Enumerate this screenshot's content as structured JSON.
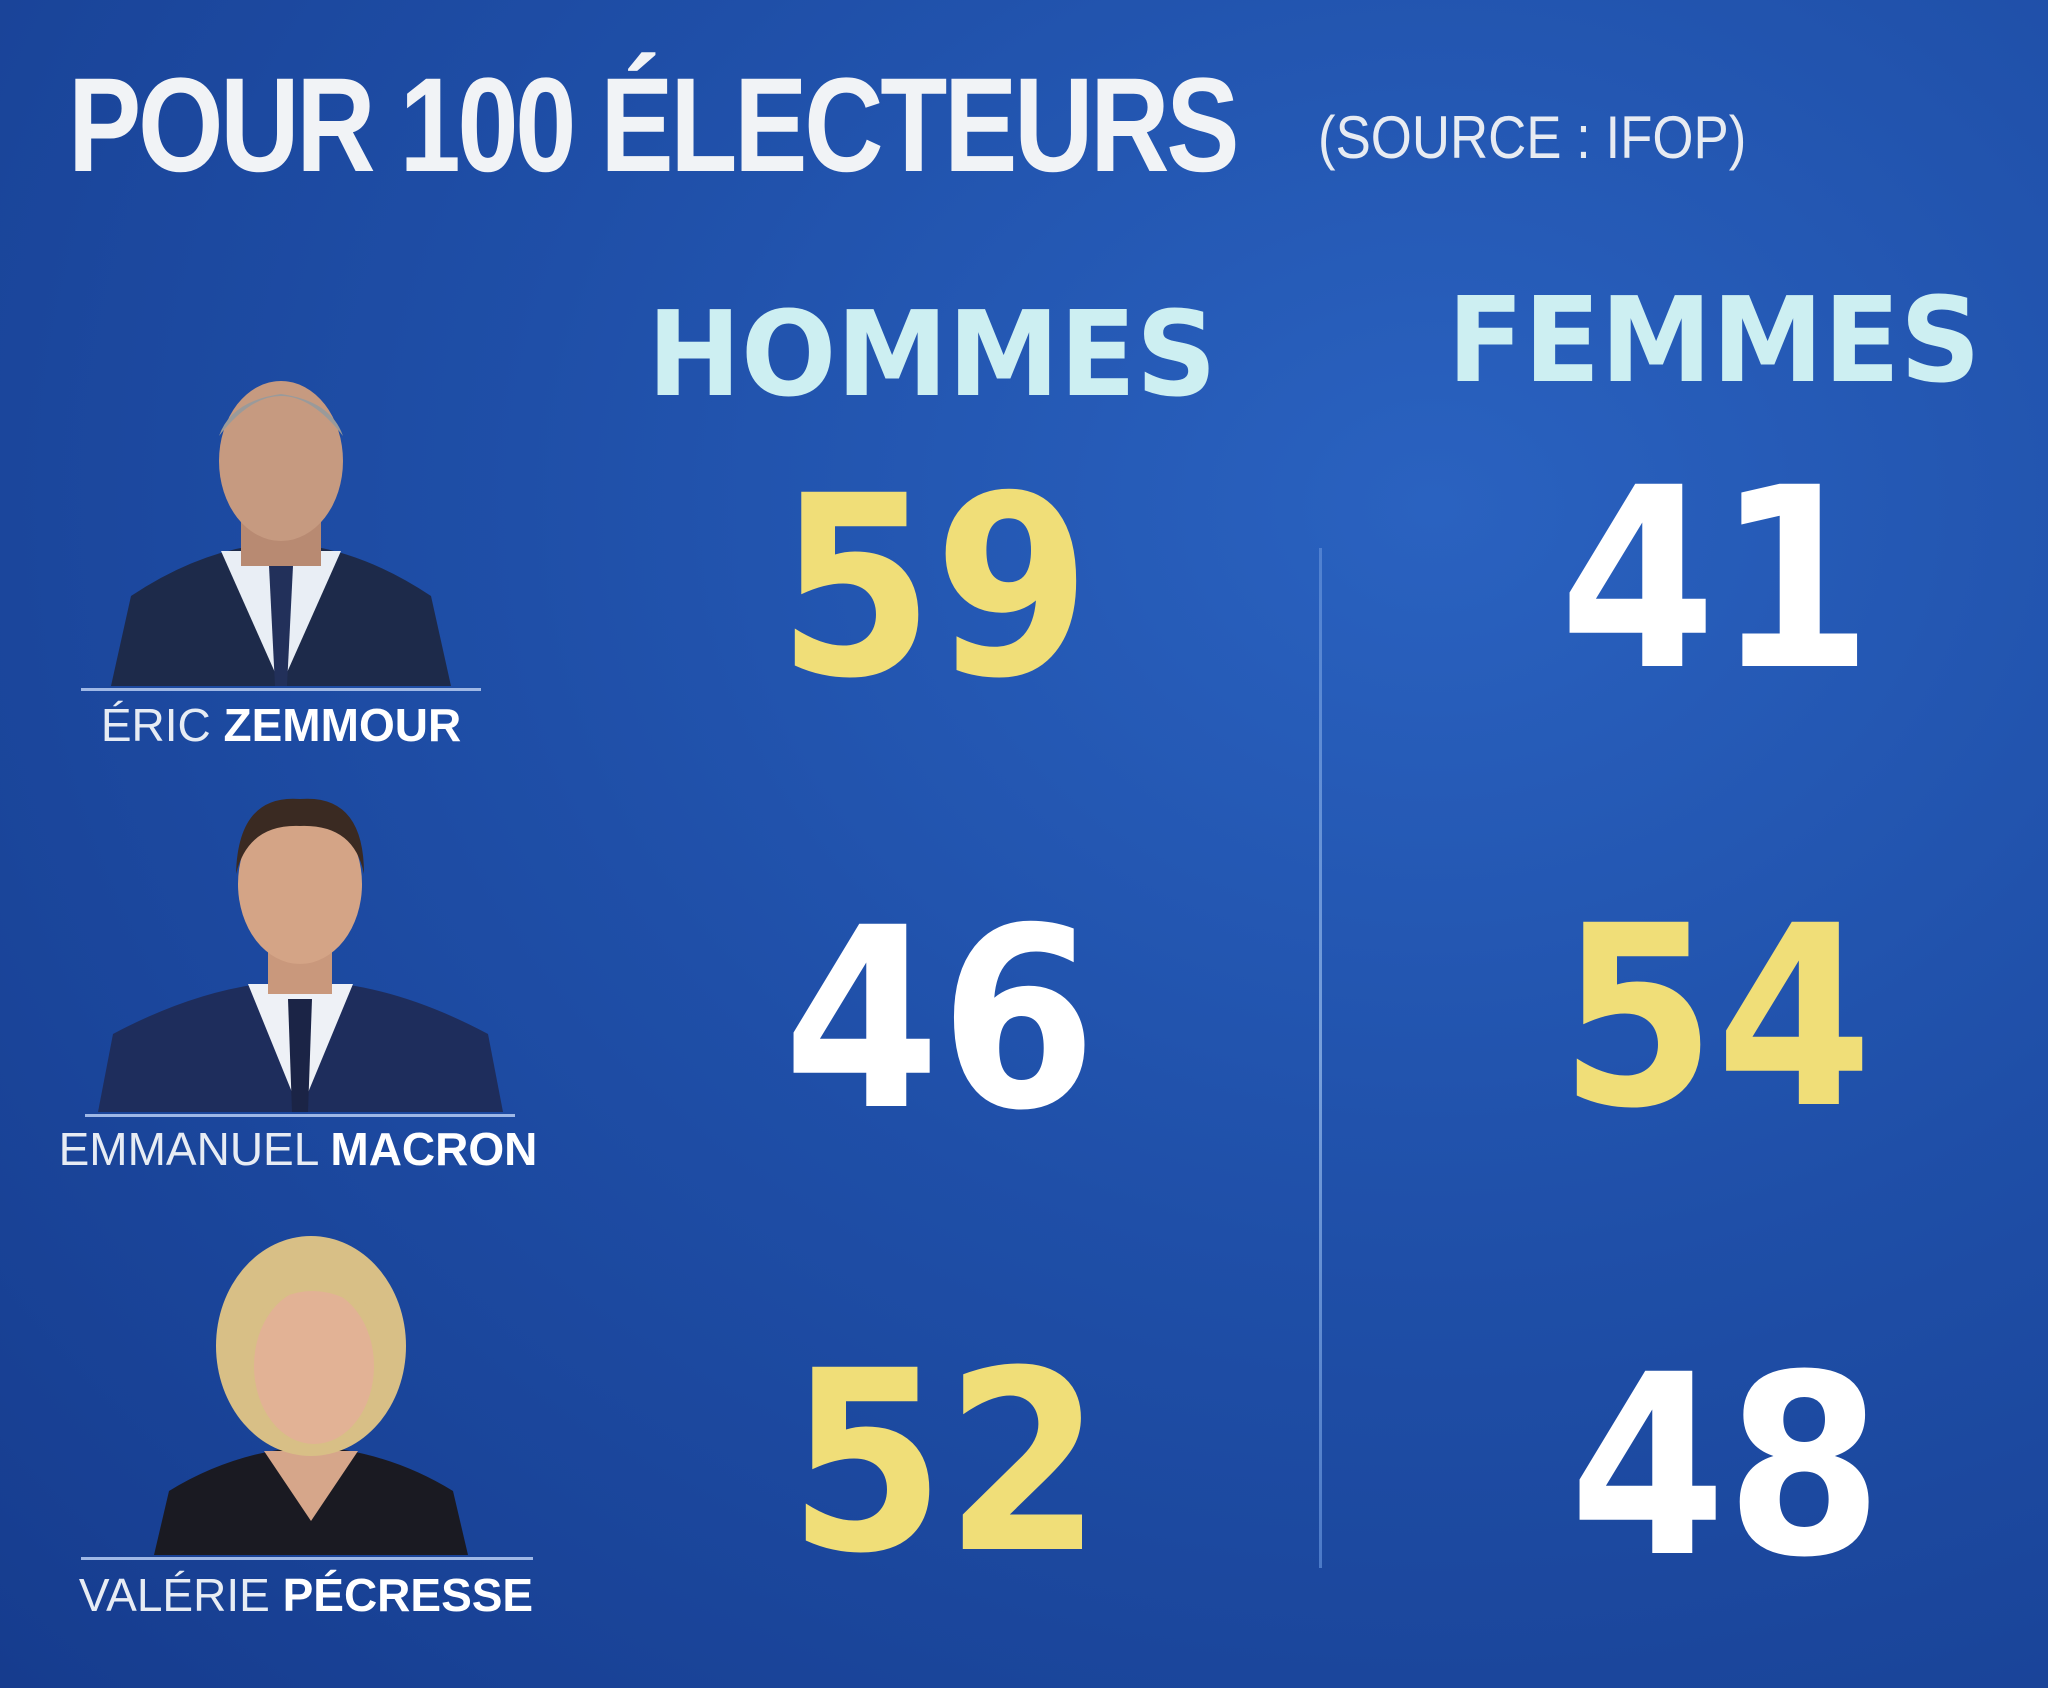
{
  "header": {
    "title": "POUR 100 ÉLECTEURS",
    "source": "(SOURCE : IFOP)"
  },
  "columns": [
    "HOMMES",
    "FEMMES"
  ],
  "candidates": [
    {
      "first": "ÉRIC",
      "last": "ZEMMOUR",
      "hommes": "59",
      "femmes": "41"
    },
    {
      "first": "EMMANUEL",
      "last": "MACRON",
      "hommes": "46",
      "femmes": "54"
    },
    {
      "first": "VALÉRIE",
      "last": "PÉCRESSE",
      "hommes": "52",
      "femmes": "48"
    }
  ],
  "colors": {
    "background": "#1f4fa8",
    "highlight": "#f0de78",
    "normal": "#ffffff",
    "header": "#cdeff2"
  },
  "chart_data": {
    "type": "table",
    "title": "POUR 100 ÉLECTEURS",
    "subtitle": "(SOURCE : IFOP)",
    "columns": [
      "HOMMES",
      "FEMMES"
    ],
    "rows": [
      "ÉRIC ZEMMOUR",
      "EMMANUEL MACRON",
      "VALÉRIE PÉCRESSE"
    ],
    "values": [
      [
        59,
        41
      ],
      [
        46,
        54
      ],
      [
        52,
        48
      ]
    ],
    "highlighted": "larger value in each row shown in yellow"
  }
}
